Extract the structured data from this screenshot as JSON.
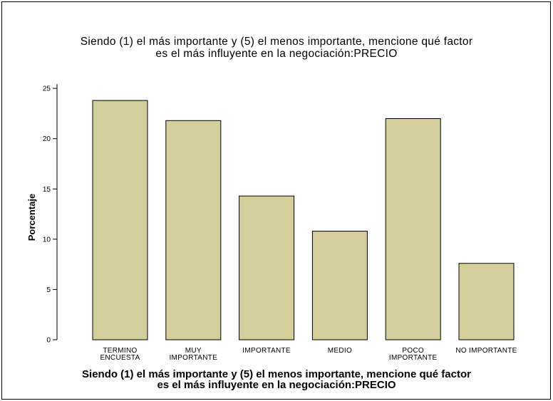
{
  "chart_data": {
    "type": "bar",
    "title_lines": [
      "Siendo (1) el más importante y (5) el menos importante, mencione qué factor",
      "es el más influyente en la negociación:PRECIO"
    ],
    "xlabel_lines": [
      "Siendo (1) el más importante y (5) el menos importante, mencione qué factor",
      "es el más influyente en la negociación:PRECIO"
    ],
    "ylabel": "Porcentaje",
    "categories": [
      [
        "TERMINO",
        "ENCUESTA"
      ],
      [
        "MUY",
        "IMPORTANTE"
      ],
      [
        "IMPORTANTE"
      ],
      [
        "MEDIO"
      ],
      [
        "POCO",
        "IMPORTANTE"
      ],
      [
        "NO IMPORTANTE"
      ]
    ],
    "values": [
      23.8,
      21.8,
      14.3,
      10.8,
      22.0,
      7.6
    ],
    "ylim": [
      0,
      26
    ],
    "yticks": [
      0,
      5,
      10,
      15,
      20,
      25
    ],
    "bar_color": "#d3ce9a",
    "grid": false
  }
}
